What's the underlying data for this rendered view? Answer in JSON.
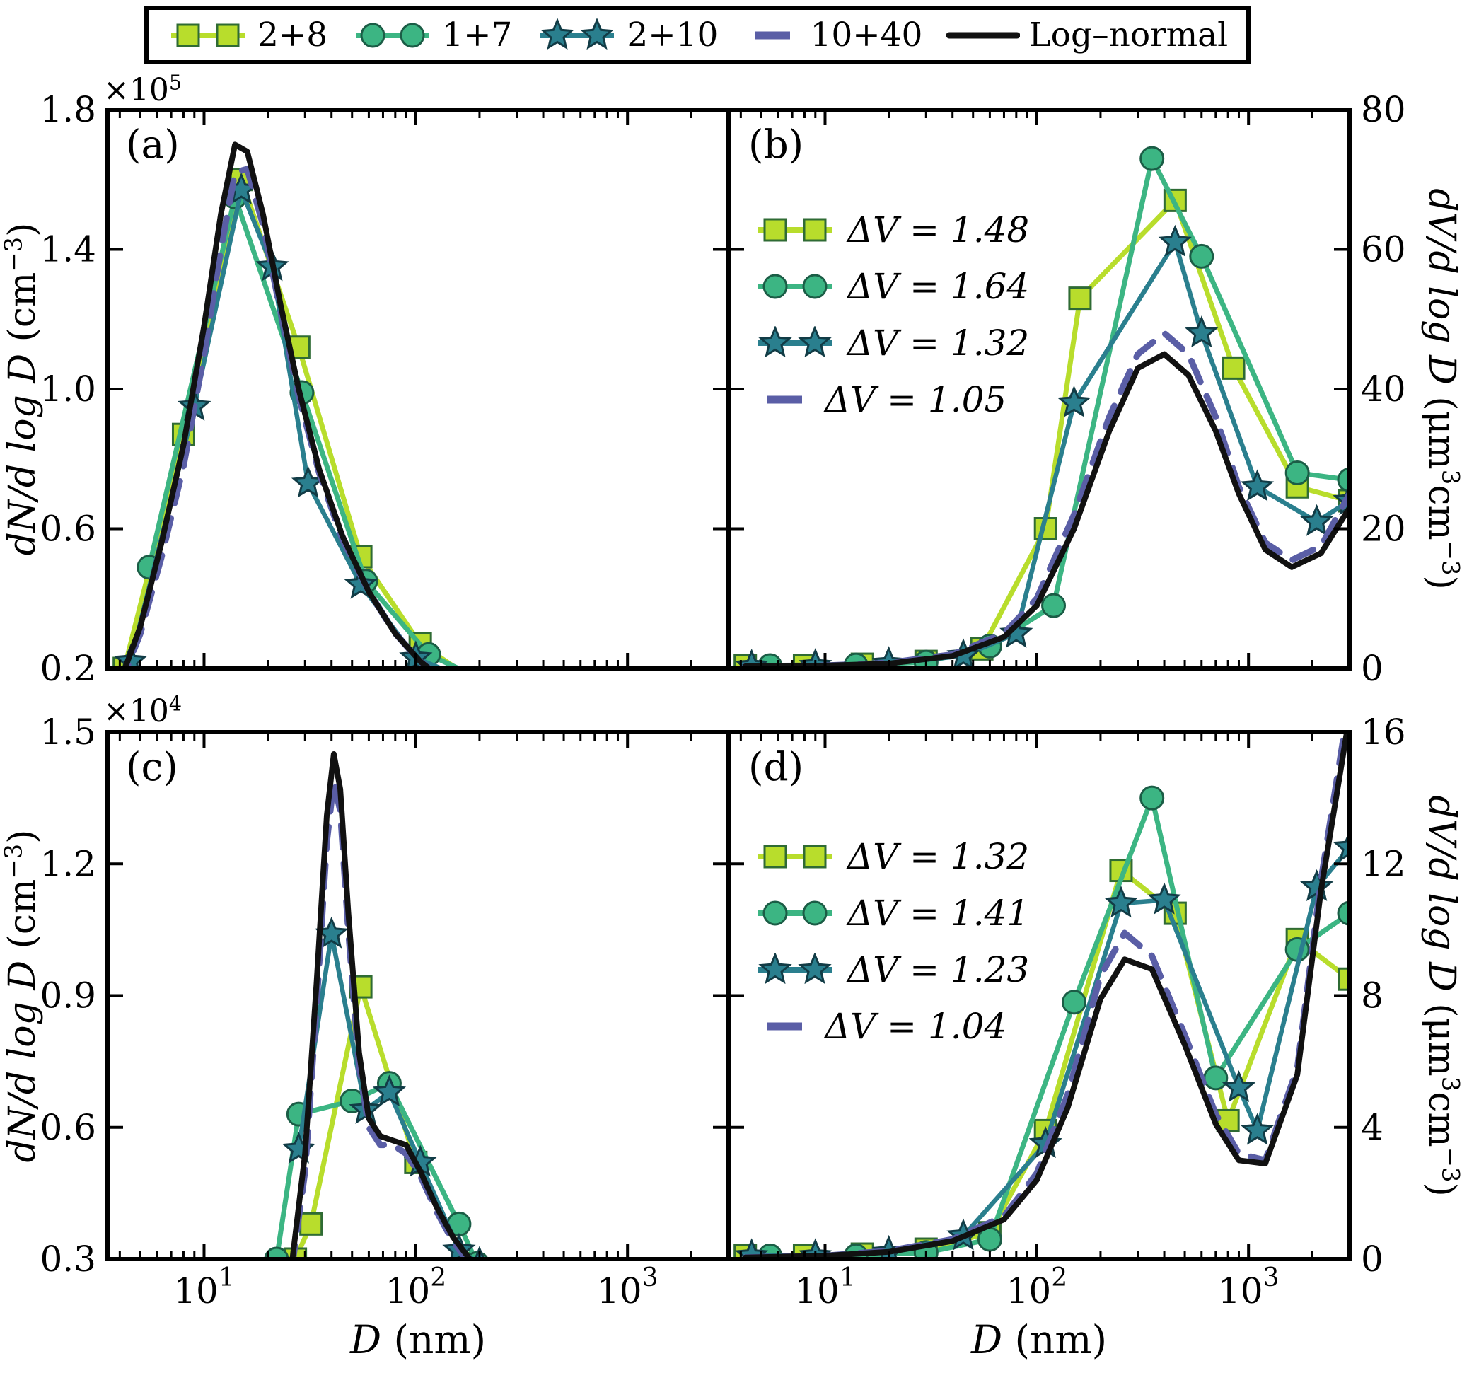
{
  "axes": {
    "ylabel_left": {
      "math": "dN/d log D",
      "pre": " (cm",
      "sup": "−3",
      "post": ")"
    },
    "ylabel_right": {
      "math": "dV/d log D",
      "pre": " (μm",
      "sup1": "3",
      "mid": "cm",
      "sup2": "−3",
      "post": ")"
    },
    "offset_top": {
      "pre": "×10",
      "sup": "5"
    },
    "offset_bottom": {
      "pre": "×10",
      "sup": "4"
    }
  },
  "chart_data": {
    "type": "line",
    "grid": false,
    "legend_position": "top",
    "x_axis": {
      "scale": "log",
      "min": 3.5,
      "max": 3000,
      "label_var": "D",
      "label_unit": " (nm)",
      "ticks": [
        {
          "v": 10,
          "base": "10",
          "exp": "1"
        },
        {
          "v": 100,
          "base": "10",
          "exp": "2"
        },
        {
          "v": 1000,
          "base": "10",
          "exp": "3"
        }
      ]
    },
    "series_styles": [
      {
        "name": "2+8",
        "color": "#b8dd2c",
        "edge": "#2f6b34",
        "marker": "square",
        "dash": false
      },
      {
        "name": "1+7",
        "color": "#3cb583",
        "edge": "#1b5d46",
        "marker": "circle",
        "dash": false
      },
      {
        "name": "2+10",
        "color": "#2a7f8e",
        "edge": "#123c46",
        "marker": "star",
        "dash": false
      },
      {
        "name": "10+40",
        "color": "#5a5ea6",
        "edge": "#5a5ea6",
        "marker": "none",
        "dash": true
      },
      {
        "name": "Log–normal",
        "color": "#111111",
        "edge": "#111111",
        "marker": "none",
        "dash": false
      }
    ],
    "panels": [
      {
        "label": "(a)",
        "y_units": "1e5 cm-3",
        "ylim": [
          0.2,
          1.8
        ],
        "yticks": [
          0.2,
          0.6,
          1.0,
          1.4,
          1.8
        ],
        "ytick_labels": [
          "0.2",
          "0.6",
          "1.0",
          "1.4",
          "1.8"
        ],
        "series": [
          {
            "name": "2+8",
            "x": [
              4.2,
              8,
              15,
              28,
              55,
              105,
              185
            ],
            "y": [
              0.2,
              0.87,
              1.6,
              1.12,
              0.52,
              0.27,
              0.17
            ]
          },
          {
            "name": "1+7",
            "x": [
              5.5,
              14,
              29,
              58,
              115,
              220
            ],
            "y": [
              0.49,
              1.55,
              0.99,
              0.45,
              0.24,
              0.16
            ]
          },
          {
            "name": "2+10",
            "x": [
              4.5,
              9,
              15,
              21,
              31,
              55,
              100,
              190
            ],
            "y": [
              0.22,
              0.95,
              1.57,
              1.35,
              0.73,
              0.44,
              0.23,
              0.16
            ]
          },
          {
            "name": "10+40",
            "x": [
              4,
              5,
              6.3,
              8,
              10,
              12,
              14,
              16,
              19,
              23,
              28,
              35,
              45,
              60,
              80,
              105,
              140
            ],
            "y": [
              0.15,
              0.3,
              0.52,
              0.78,
              1.1,
              1.4,
              1.62,
              1.63,
              1.47,
              1.22,
              0.98,
              0.76,
              0.57,
              0.42,
              0.3,
              0.22,
              0.16
            ]
          },
          {
            "name": "Log–normal",
            "x": [
              4,
              5,
              6.3,
              8,
              10,
              12,
              14,
              16,
              19,
              23,
              28,
              35,
              45,
              60,
              80,
              105,
              140
            ],
            "y": [
              0.16,
              0.32,
              0.56,
              0.84,
              1.18,
              1.5,
              1.7,
              1.68,
              1.5,
              1.24,
              1.0,
              0.77,
              0.58,
              0.42,
              0.3,
              0.22,
              0.16
            ]
          }
        ]
      },
      {
        "label": "(b)",
        "y_units": "um3 cm-3",
        "ylim": [
          0,
          80
        ],
        "yticks": [
          0,
          20,
          40,
          60,
          80
        ],
        "ytick_labels": [
          "0",
          "20",
          "40",
          "60",
          "80"
        ],
        "inner_legend": [
          "ΔV = 1.48",
          "ΔV = 1.64",
          "ΔV = 1.32",
          "ΔV = 1.05"
        ],
        "series": [
          {
            "name": "2+8",
            "x": [
              4.2,
              8,
              15,
              30,
              55,
              110,
              160,
              450,
              850,
              1700,
              3000
            ],
            "y": [
              0.4,
              0.4,
              0.6,
              1.0,
              2.8,
              20,
              53,
              67,
              43,
              26,
              24
            ]
          },
          {
            "name": "1+7",
            "x": [
              5.5,
              14,
              30,
              60,
              120,
              350,
              600,
              1700,
              3000
            ],
            "y": [
              0.4,
              0.5,
              0.9,
              3.2,
              9,
              73,
              59,
              28,
              27
            ]
          },
          {
            "name": "2+10",
            "x": [
              4.5,
              9,
              20,
              45,
              80,
              150,
              450,
              600,
              1100,
              2100,
              3000
            ],
            "y": [
              0.3,
              0.4,
              0.7,
              1.8,
              5,
              38,
              61,
              48,
              26,
              21,
              24
            ]
          },
          {
            "name": "10+40",
            "x": [
              4.2,
              10,
              20,
              40,
              70,
              100,
              150,
              220,
              300,
              400,
              520,
              700,
              900,
              1200,
              1600,
              2200,
              3000
            ],
            "y": [
              0.3,
              0.4,
              0.8,
              2.0,
              5.0,
              10,
              22,
              36,
              45,
              48,
              45,
              36,
              26,
              18,
              15.5,
              17.5,
              25
            ]
          },
          {
            "name": "Log–normal",
            "x": [
              4.2,
              10,
              20,
              40,
              70,
              100,
              150,
              220,
              300,
              400,
              520,
              700,
              900,
              1200,
              1600,
              2200,
              3000
            ],
            "y": [
              0.3,
              0.4,
              0.7,
              1.8,
              4.5,
              9.0,
              20,
              34,
              43,
              45,
              42,
              34,
              25,
              17,
              14.5,
              16.5,
              23
            ]
          }
        ]
      },
      {
        "label": "(c)",
        "y_units": "1e4 cm-3",
        "ylim": [
          0.3,
          1.5
        ],
        "yticks": [
          0.3,
          0.6,
          0.9,
          1.2,
          1.5
        ],
        "ytick_labels": [
          "0.3",
          "0.6",
          "0.9",
          "1.2",
          "1.5"
        ],
        "series": [
          {
            "name": "2+8",
            "x": [
              27,
              32,
              55,
              100,
              175
            ],
            "y": [
              0.3,
              0.38,
              0.92,
              0.52,
              0.29
            ]
          },
          {
            "name": "1+7",
            "x": [
              22,
              28,
              50,
              75,
              160,
              195
            ],
            "y": [
              0.3,
              0.63,
              0.66,
              0.7,
              0.38,
              0.29
            ]
          },
          {
            "name": "2+10",
            "x": [
              28,
              40,
              58,
              75,
              105,
              160,
              200
            ],
            "y": [
              0.55,
              1.04,
              0.64,
              0.68,
              0.52,
              0.32,
              0.29
            ]
          },
          {
            "name": "10+40",
            "x": [
              26,
              30,
              34,
              38,
              41,
              44,
              48,
              54,
              60,
              68,
              78,
              90,
              105,
              125,
              150,
              180,
              215
            ],
            "y": [
              0.28,
              0.5,
              0.88,
              1.25,
              1.39,
              1.32,
              1.05,
              0.74,
              0.6,
              0.56,
              0.56,
              0.54,
              0.49,
              0.41,
              0.34,
              0.29,
              0.25
            ]
          },
          {
            "name": "Log–normal",
            "x": [
              26,
              30,
              34,
              38,
              41,
              44,
              48,
              54,
              60,
              68,
              78,
              90,
              105,
              125,
              150,
              180,
              215
            ],
            "y": [
              0.29,
              0.54,
              0.93,
              1.31,
              1.45,
              1.37,
              1.09,
              0.77,
              0.62,
              0.58,
              0.57,
              0.56,
              0.5,
              0.42,
              0.35,
              0.3,
              0.26
            ]
          }
        ]
      },
      {
        "label": "(d)",
        "y_units": "um3 cm-3",
        "ylim": [
          0,
          16
        ],
        "yticks": [
          0,
          4,
          8,
          12,
          16
        ],
        "ytick_labels": [
          "0",
          "4",
          "8",
          "12",
          "16"
        ],
        "inner_legend": [
          "ΔV = 1.32",
          "ΔV = 1.41",
          "ΔV = 1.23",
          "ΔV = 1.04"
        ],
        "series": [
          {
            "name": "2+8",
            "x": [
              4.2,
              8,
              15,
              30,
              60,
              110,
              250,
              450,
              800,
              1700,
              3000
            ],
            "y": [
              0.1,
              0.1,
              0.15,
              0.3,
              0.8,
              3.9,
              11.8,
              10.5,
              4.2,
              9.7,
              8.5
            ]
          },
          {
            "name": "1+7",
            "x": [
              5.5,
              14,
              30,
              60,
              150,
              350,
              700,
              1700,
              3000
            ],
            "y": [
              0.1,
              0.1,
              0.2,
              0.6,
              7.8,
              14.0,
              5.5,
              9.4,
              10.5
            ]
          },
          {
            "name": "2+10",
            "x": [
              4.5,
              9,
              20,
              45,
              110,
              250,
              400,
              900,
              1100,
              2100,
              3000
            ],
            "y": [
              0.1,
              0.1,
              0.2,
              0.7,
              3.5,
              10.8,
              10.9,
              5.2,
              3.9,
              11.3,
              12.5
            ]
          },
          {
            "name": "10+40",
            "x": [
              4.2,
              10,
              20,
              40,
              70,
              100,
              140,
              200,
              260,
              350,
              500,
              700,
              900,
              1200,
              1700,
              2200,
              3000
            ],
            "y": [
              0.05,
              0.1,
              0.25,
              0.6,
              1.3,
              2.6,
              5.0,
              8.6,
              9.9,
              9.2,
              6.8,
              4.4,
              3.2,
              3.0,
              5.8,
              11.5,
              17
            ]
          },
          {
            "name": "Log–normal",
            "x": [
              4.2,
              10,
              20,
              40,
              70,
              100,
              140,
              200,
              260,
              350,
              500,
              700,
              900,
              1200,
              1700,
              2200,
              3000
            ],
            "y": [
              0.05,
              0.1,
              0.22,
              0.55,
              1.2,
              2.4,
              4.6,
              7.9,
              9.1,
              8.8,
              6.5,
              4.1,
              3.0,
              2.9,
              5.6,
              11.2,
              16.5
            ]
          }
        ]
      }
    ]
  }
}
